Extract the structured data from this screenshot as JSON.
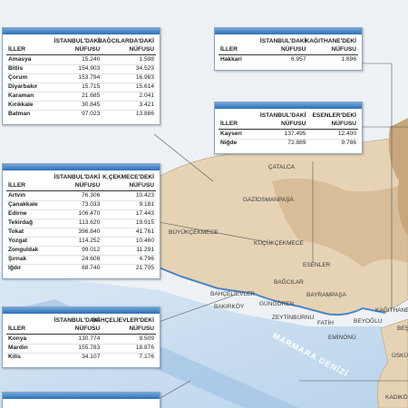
{
  "tables": [
    {
      "columns": [
        [
          "İLLER"
        ],
        [
          "İSTANBUL'DAKİ",
          "NÜFUSU"
        ],
        [
          "BAĞCILARDA'DAKİ",
          "NÜFUSU"
        ]
      ],
      "rows": [
        [
          "Amasya",
          "15.240",
          "1.598"
        ],
        [
          "Bitlis",
          "154.903",
          "34.523"
        ],
        [
          "Çorum",
          "153.794",
          "16.983"
        ],
        [
          "Diyarbakır",
          "15.715",
          "15.614"
        ],
        [
          "Karaman",
          "21.685",
          "2.041"
        ],
        [
          "Kırıkkale",
          "30.845",
          "3.421"
        ],
        [
          "Batman",
          "97.023",
          "13.886"
        ]
      ]
    },
    {
      "columns": [
        [
          "İLLER"
        ],
        [
          "İSTANBUL'DAKİ",
          "NÜFUSU"
        ],
        [
          "KAĞITHANE'DEKİ",
          "NÜFUSU"
        ]
      ],
      "rows": [
        [
          "Hakkari",
          "6.957",
          "1.696"
        ]
      ]
    },
    {
      "columns": [
        [
          "İLLER"
        ],
        [
          "İSTANBUL'DAKİ",
          "NÜFUSU"
        ],
        [
          "ESENLER'DEKİ",
          "NÜFUSU"
        ]
      ],
      "rows": [
        [
          "Kayseri",
          "137.495",
          "12.400"
        ],
        [
          "Niğde",
          "72.889",
          "9.786"
        ]
      ]
    },
    {
      "columns": [
        [
          "İLLER"
        ],
        [
          "İSTANBUL'DAKİ",
          "NÜFUSU"
        ],
        [
          "K.ÇEKMECE'DEKİ",
          "NÜFUSU"
        ]
      ],
      "rows": [
        [
          "Artvin",
          "76.306",
          "10.423"
        ],
        [
          "Çanakkale",
          "73.033",
          "9.181"
        ],
        [
          "Edirne",
          "106.470",
          "17.443"
        ],
        [
          "Tekirdağ",
          "113.620",
          "19.915"
        ],
        [
          "Tokat",
          "396.840",
          "41.761"
        ],
        [
          "Yozgat",
          "114.252",
          "10.460"
        ],
        [
          "Zonguldak",
          "99.012",
          "11.291"
        ],
        [
          "Şırnak",
          "24.608",
          "4.796"
        ],
        [
          "Iğdır",
          "68.740",
          "21.705"
        ]
      ]
    },
    {
      "columns": [
        [
          "İLLER"
        ],
        [
          "İSTANBUL'DAKİ",
          "NÜFUSU"
        ],
        [
          "BAHÇELİEVLER'DEKİ",
          "NÜFUSU"
        ]
      ],
      "rows": [
        [
          "Konya",
          "130.774",
          "9.509"
        ],
        [
          "Mardin",
          "155.783",
          "18.876"
        ],
        [
          "Kilis",
          "34.107",
          "7.176"
        ]
      ]
    }
  ],
  "map": {
    "districts": [
      "ÇATALCA",
      "GAZİOSMANPAŞA",
      "BÜYÜKÇEKMECE",
      "KÜÇÜKÇEKMECE",
      "ESENLER",
      "BAĞCILAR",
      "BAHÇELİEVLER",
      "BAYRAMPAŞA",
      "BAKIRKÖY",
      "GÜNGÖREN",
      "ZEYTİNBURNU",
      "FATİH",
      "BEYOĞLU",
      "KAĞITHANE",
      "EMİNÖNÜ",
      "BEŞ",
      "ÜSKÜ",
      "KADIKÖ"
    ],
    "sea": "MARMARA DENİZİ"
  }
}
